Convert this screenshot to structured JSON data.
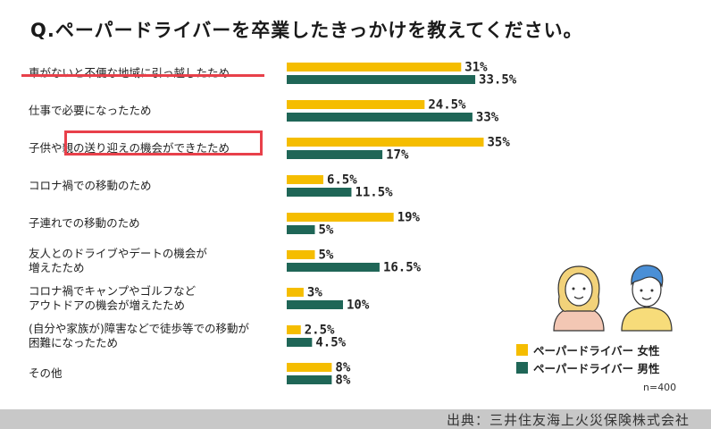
{
  "chart_data": {
    "type": "bar",
    "orientation": "horizontal",
    "title": "Q.ペーパードライバーを卒業したきっかけを教えてください。",
    "categories": [
      "車がないと不便な地域に引っ越したため",
      "仕事で必要になったため",
      "子供や親の送り迎えの機会ができたため",
      "コロナ禍での移動のため",
      "子連れでの移動のため",
      "友人とのドライブやデートの機会が増えたため",
      "コロナ禍でキャンプやゴルフなどアウトドアの機会が増えたため",
      "(自分や家族が)障害などで徒歩等での移動が困難になったため",
      "その他"
    ],
    "category_lines": [
      [
        "車がないと不便な地域に引っ越したため"
      ],
      [
        "仕事で必要になったため"
      ],
      [
        "子供や親の送り迎えの機会ができたため"
      ],
      [
        "コロナ禍での移動のため"
      ],
      [
        "子連れでの移動のため"
      ],
      [
        "友人とのドライブやデートの機会が",
        "増えたため"
      ],
      [
        "コロナ禍でキャンプやゴルフなど",
        "アウトドアの機会が増えたため"
      ],
      [
        "(自分や家族が)障害などで徒歩等での移動が",
        "困難になったため"
      ],
      [
        "その他"
      ]
    ],
    "series": [
      {
        "name": "ペーパードライバー 女性",
        "color": "#f5bd00",
        "values": [
          31,
          24.5,
          35,
          6.5,
          19,
          5,
          3,
          2.5,
          8
        ],
        "labels": [
          "31%",
          "24.5%",
          "35%",
          "6.5%",
          "19%",
          "5%",
          "3%",
          "2.5%",
          "8%"
        ]
      },
      {
        "name": "ペーパードライバー 男性",
        "color": "#1f6657",
        "values": [
          33.5,
          33,
          17,
          11.5,
          5,
          16.5,
          10,
          4.5,
          8
        ],
        "labels": [
          "33.5%",
          "33%",
          "17%",
          "11.5%",
          "5%",
          "16.5%",
          "10%",
          "4.5%",
          "8%"
        ]
      }
    ],
    "xlim": [
      0,
      40
    ],
    "grid": false,
    "legend_position": "bottom-right",
    "highlights": {
      "underlined_category": "車がないと不便な地域に引っ越したため",
      "boxed_text": "親の送り迎えの機会ができたため"
    }
  },
  "sample_note": "n=400",
  "source": "出典：三井住友海上火災保険株式会社"
}
